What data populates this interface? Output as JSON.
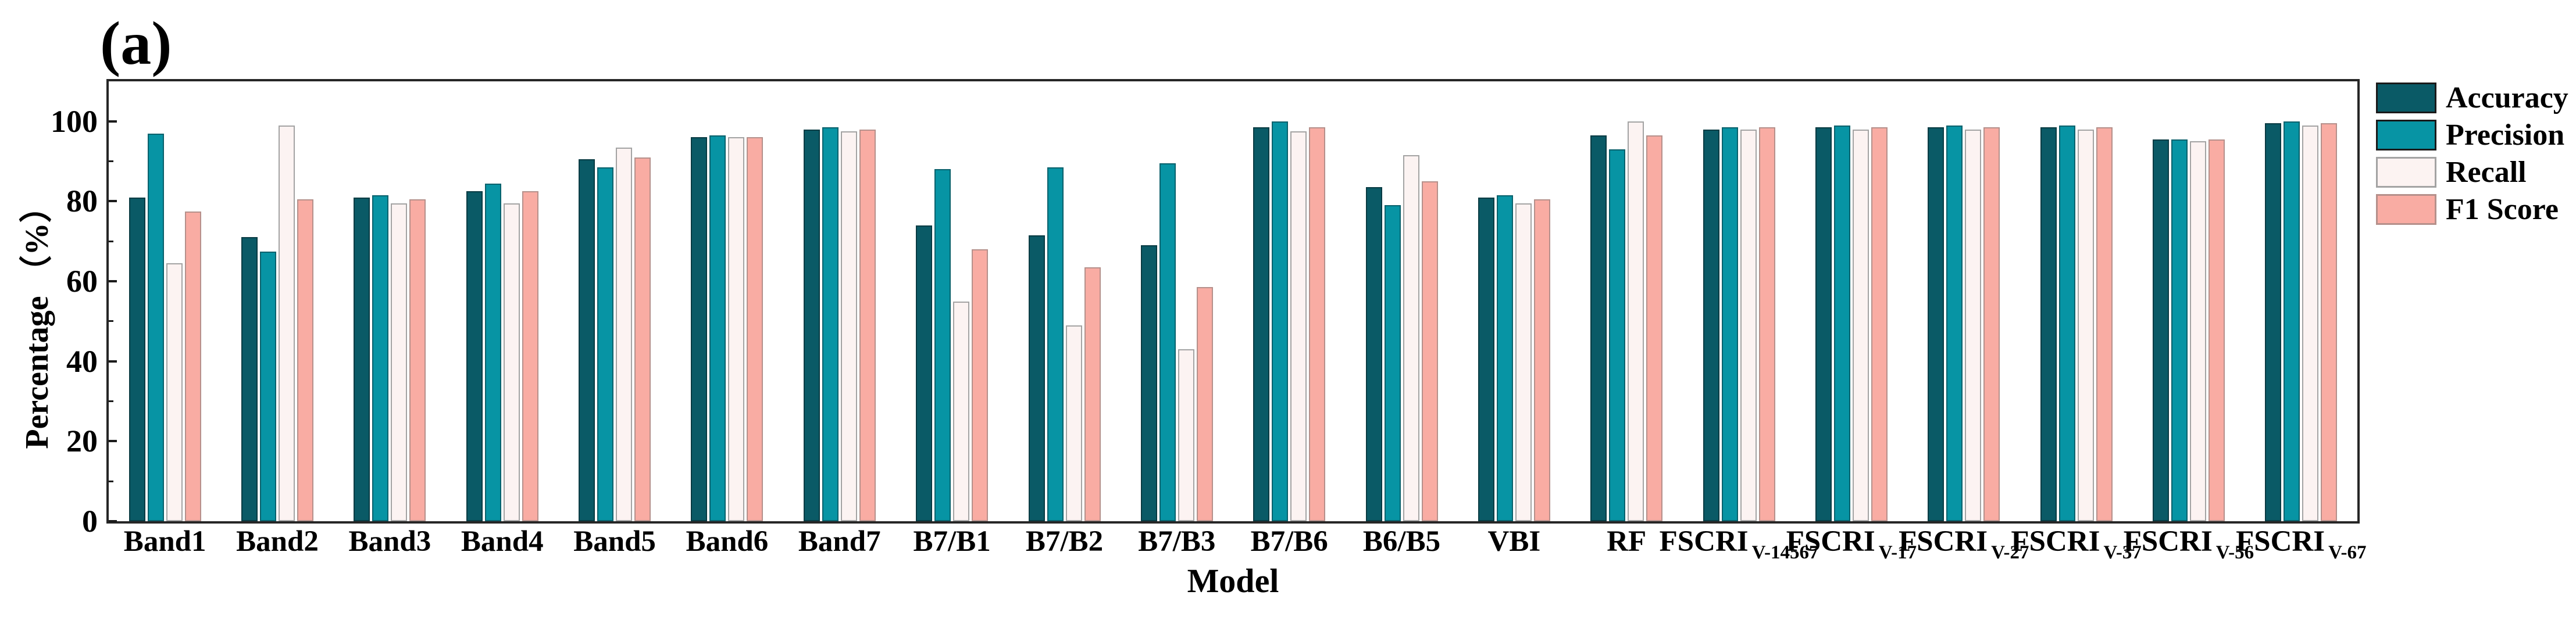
{
  "panel_label": "(a)",
  "axes": {
    "y_label": "Percentage （%）",
    "x_label": "Model",
    "y_ticks": [
      0,
      20,
      40,
      60,
      80,
      100
    ],
    "y_minor_ticks": [
      10,
      30,
      50,
      70,
      90
    ],
    "y_range": [
      0,
      110
    ]
  },
  "legend": {
    "items": [
      "Accuracy",
      "Precision",
      "Recall",
      "F1 Score"
    ]
  },
  "colors": {
    "accuracy_fill": "#0a5a66",
    "accuracy_border": "#093b43",
    "precision_fill": "#0794a4",
    "precision_border": "#09616c",
    "recall_fill": "#fcf3f2",
    "recall_border": "#a3a3a3",
    "f1_fill": "#f9aca3",
    "f1_border": "#b5908b",
    "axis_color": "#262626"
  },
  "chart_data": {
    "type": "bar",
    "title": "(a)",
    "xlabel": "Model",
    "ylabel": "Percentage （%）",
    "ylim": [
      0,
      110
    ],
    "grid": false,
    "legend_position": "outside-top-right",
    "categories": [
      "Band1",
      "Band2",
      "Band3",
      "Band4",
      "Band5",
      "Band6",
      "Band7",
      "B7/B1",
      "B7/B2",
      "B7/B3",
      "B7/B6",
      "B6/B5",
      "VBI",
      "RF",
      "FSCRI V-14567",
      "FSCRI V-17",
      "FSCRI V-27",
      "FSCRI V-37",
      "FSCRI V-56",
      "FSCRI V-67"
    ],
    "series": [
      {
        "name": "Accuracy",
        "values": [
          81,
          71,
          81,
          82.5,
          90.5,
          96,
          98,
          74,
          71.5,
          69,
          98.5,
          83.5,
          81,
          96.5,
          98,
          98.5,
          98.5,
          98.5,
          95.5,
          99.5
        ]
      },
      {
        "name": "Precision",
        "values": [
          97,
          67.5,
          81.5,
          84.5,
          88.5,
          96.5,
          98.5,
          88,
          88.5,
          89.5,
          100,
          79,
          81.5,
          93,
          98.5,
          99,
          99,
          99,
          95.5,
          100
        ]
      },
      {
        "name": "Recall",
        "values": [
          64.5,
          99,
          79.5,
          79.5,
          93.5,
          96,
          97.5,
          55,
          49,
          43,
          97.5,
          91.5,
          79.5,
          100,
          98,
          98,
          98,
          98,
          95,
          99
        ]
      },
      {
        "name": "F1 Score",
        "values": [
          77.5,
          80.5,
          80.5,
          82.5,
          91,
          96,
          98,
          68,
          63.5,
          58.5,
          98.5,
          85,
          80.5,
          96.5,
          98.5,
          98.5,
          98.5,
          98.5,
          95.5,
          99.5
        ]
      }
    ]
  }
}
